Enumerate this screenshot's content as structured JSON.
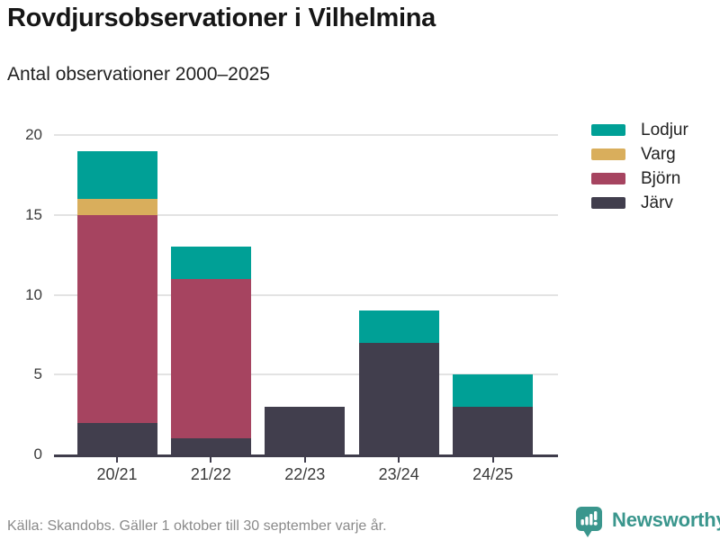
{
  "header": {
    "title": "Rovdjursobservationer i Vilhelmina",
    "subtitle": "Antal observationer 2000–2025"
  },
  "chart_data": {
    "type": "bar",
    "stacked": true,
    "categories": [
      "20/21",
      "21/22",
      "22/23",
      "23/24",
      "24/25"
    ],
    "series": [
      {
        "name": "Lodjur",
        "color": "#00a096",
        "values": [
          3,
          2,
          0,
          2,
          2
        ]
      },
      {
        "name": "Varg",
        "color": "#d9ae5c",
        "values": [
          1,
          0,
          0,
          0,
          0
        ]
      },
      {
        "name": "Björn",
        "color": "#a64460",
        "values": [
          13,
          10,
          0,
          0,
          0
        ]
      },
      {
        "name": "Järv",
        "color": "#413e4d",
        "values": [
          2,
          1,
          3,
          7,
          3
        ]
      }
    ],
    "totals": [
      19,
      13,
      3,
      9,
      5
    ],
    "stack_order_bottom_to_top": [
      "Järv",
      "Björn",
      "Varg",
      "Lodjur"
    ],
    "ylim": [
      0,
      20
    ],
    "yticks": [
      0,
      5,
      10,
      15,
      20
    ],
    "grid": "horizontal",
    "legend_position": "top-right"
  },
  "footer": {
    "source": "Källa: Skandobs. Gäller 1 oktober till 30 september varje år.",
    "brand": "Newsworthy"
  },
  "colors": {
    "accent_teal": "#00a096",
    "gold": "#d9ae5c",
    "maroon": "#a64460",
    "dark_slate": "#413e4d",
    "axis": "#3f3c4b",
    "gridline": "#e3e3e3",
    "brand_teal": "#3a968d",
    "text_dark": "#161616",
    "text_muted": "#8a8a8a"
  }
}
